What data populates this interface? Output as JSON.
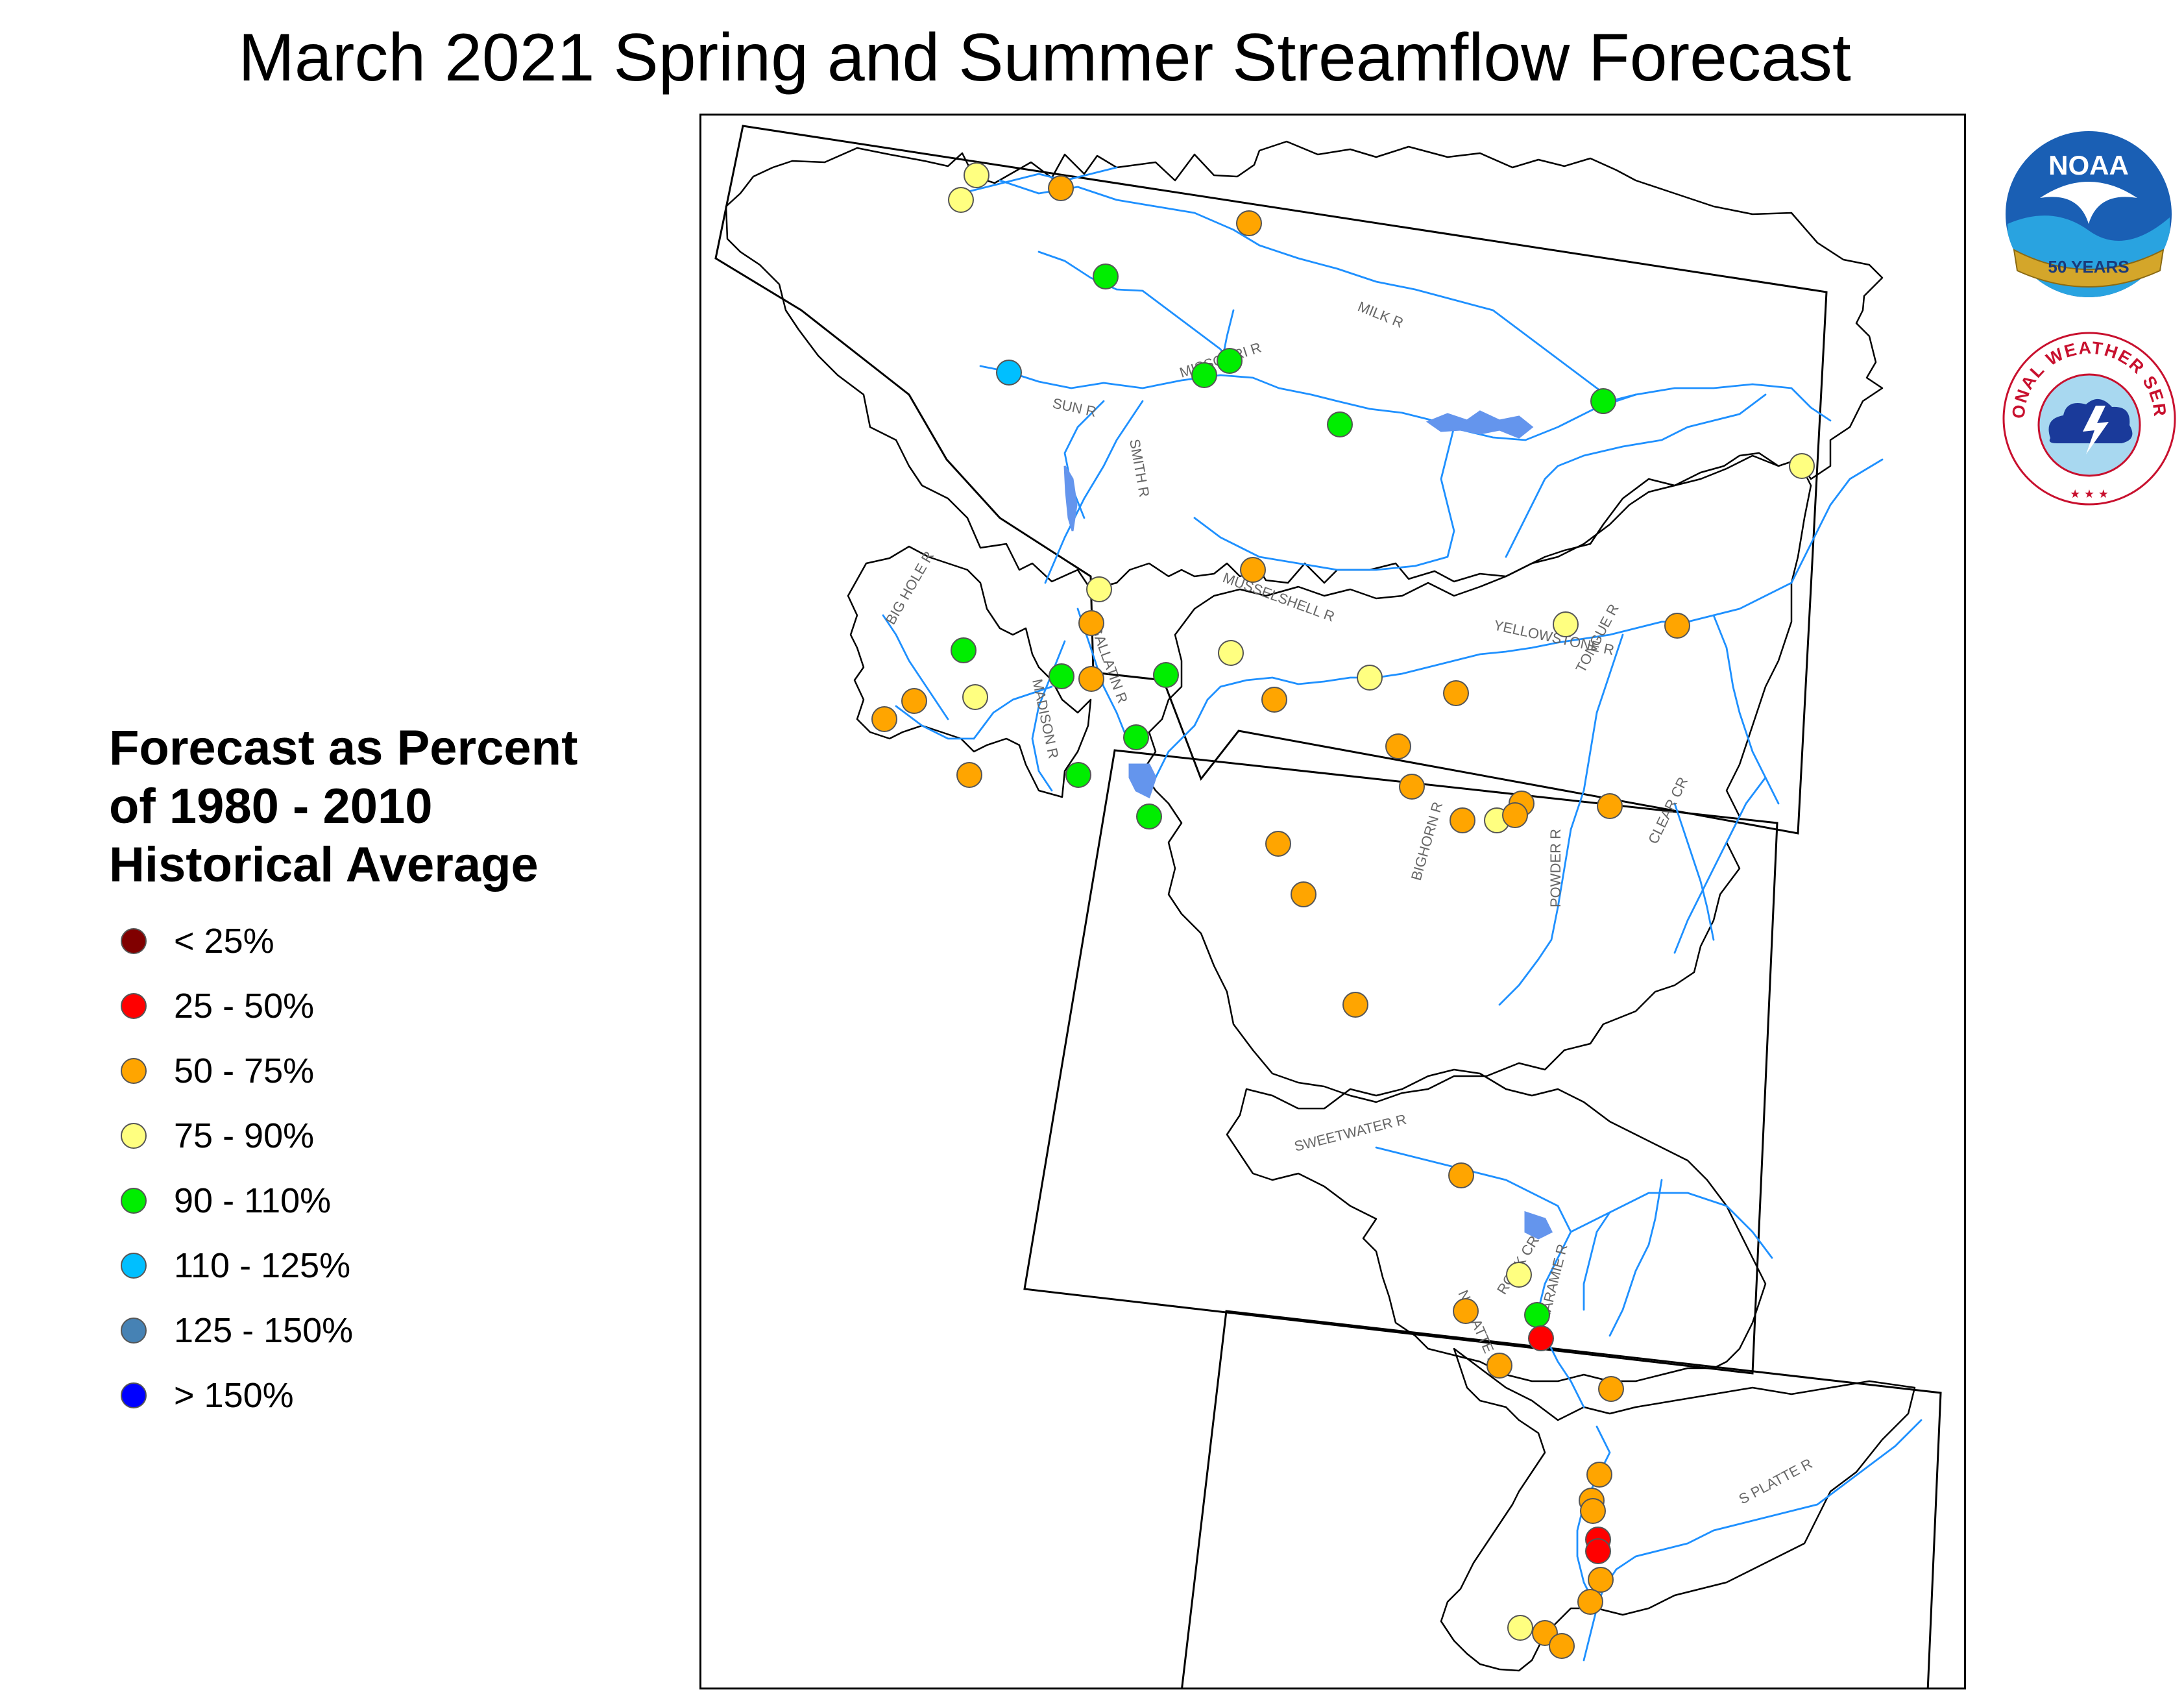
{
  "title": "March 2021 Spring and Summer Streamflow Forecast",
  "legend": {
    "title_lines": [
      "Forecast as Percent",
      "of 1980 - 2010",
      "Historical Average"
    ],
    "items": [
      {
        "label": "< 25%",
        "color": "#800000"
      },
      {
        "label": "25 - 50%",
        "color": "#ff0000"
      },
      {
        "label": "50 - 75%",
        "color": "#ffa500"
      },
      {
        "label": "75 - 90%",
        "color": "#ffff80"
      },
      {
        "label": "90 - 110%",
        "color": "#00ee00"
      },
      {
        "label": "110 - 125%",
        "color": "#00bfff"
      },
      {
        "label": "125 - 150%",
        "color": "#4682b4"
      },
      {
        "label": "> 150%",
        "color": "#0000ff"
      }
    ]
  },
  "logos": {
    "noaa": {
      "name": "NOAA",
      "badge": "50 YEARS"
    },
    "nws": {
      "name": "NATIONAL WEATHER SERVICE"
    }
  },
  "river_labels": [
    "MILK R",
    "MISSOURI R",
    "SUN R",
    "SMITH R",
    "MUSSELSHELL R",
    "BIG HOLE R",
    "GALLATIN R",
    "MADISON R",
    "YELLOWSTONE R",
    "TONGUE R",
    "CLEAR CR",
    "BIGHORN R",
    "POWDER R",
    "SWEETWATER R",
    "ROCK CR",
    "N PLATTE R",
    "LARAMIE R",
    "S PLATTE R"
  ],
  "colors": {
    "river": "#1e90ff",
    "lake": "#6495ed",
    "basin_outline": "#000000",
    "state_border": "#000000"
  }
}
